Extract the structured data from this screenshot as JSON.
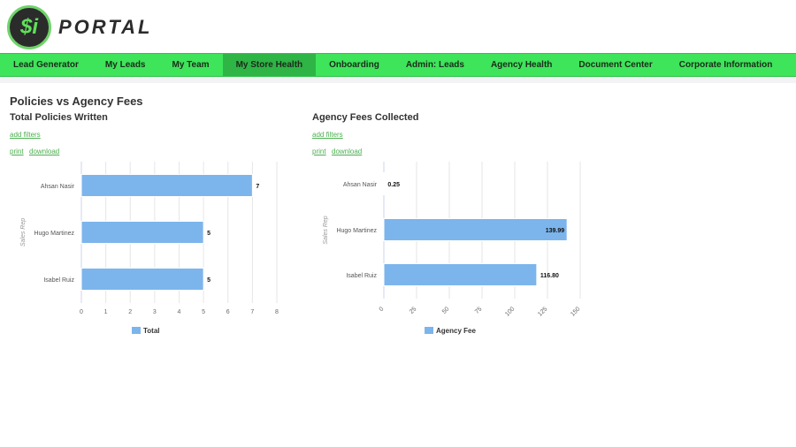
{
  "header": {
    "logo_mark": "$i",
    "logo_text": "PORTAL"
  },
  "nav": {
    "items": [
      "Lead Generator",
      "My Leads",
      "My Team",
      "My Store Health",
      "Onboarding",
      "Admin: Leads",
      "Agency Health",
      "Document Center",
      "Corporate Information"
    ],
    "active": "My Store Health"
  },
  "page": {
    "title": "Policies vs Agency Fees"
  },
  "panels": [
    {
      "title": "Total Policies Written",
      "add_filters": "add filters",
      "print": "print",
      "download": "download"
    },
    {
      "title": "Agency Fees Collected",
      "add_filters": "add filters",
      "print": "print",
      "download": "download"
    }
  ],
  "chart_data": [
    {
      "type": "bar",
      "orientation": "horizontal",
      "categories": [
        "Ahsan Nasir",
        "Hugo Martinez",
        "Isabel Ruiz"
      ],
      "values": [
        7,
        5,
        5
      ],
      "value_labels": [
        "7",
        "5",
        "5"
      ],
      "ylabel": "Sales Rep",
      "xlim": [
        0,
        8
      ],
      "ticks": [
        "0",
        "1",
        "2",
        "3",
        "4",
        "5",
        "6",
        "7",
        "8"
      ],
      "tick_values": [
        0,
        1,
        2,
        3,
        4,
        5,
        6,
        7,
        8
      ],
      "legend": "Total",
      "legend_placement": "bottom",
      "color": "#7cb5ec"
    },
    {
      "type": "bar",
      "orientation": "horizontal",
      "categories": [
        "Ahsan Nasir",
        "Hugo Martinez",
        "Isabel Ruiz"
      ],
      "values": [
        0.25,
        139.99,
        116.8
      ],
      "value_labels": [
        "0.25",
        "139.99",
        "116.80"
      ],
      "ylabel": "Sales Rep",
      "xlim": [
        0,
        150
      ],
      "ticks": [
        "0",
        "25",
        "50",
        "75",
        "100",
        "125",
        "150"
      ],
      "tick_values": [
        0,
        25,
        50,
        75,
        100,
        125,
        150
      ],
      "legend": "Agency Fee",
      "legend_placement": "bottom",
      "color": "#7cb5ec"
    }
  ]
}
